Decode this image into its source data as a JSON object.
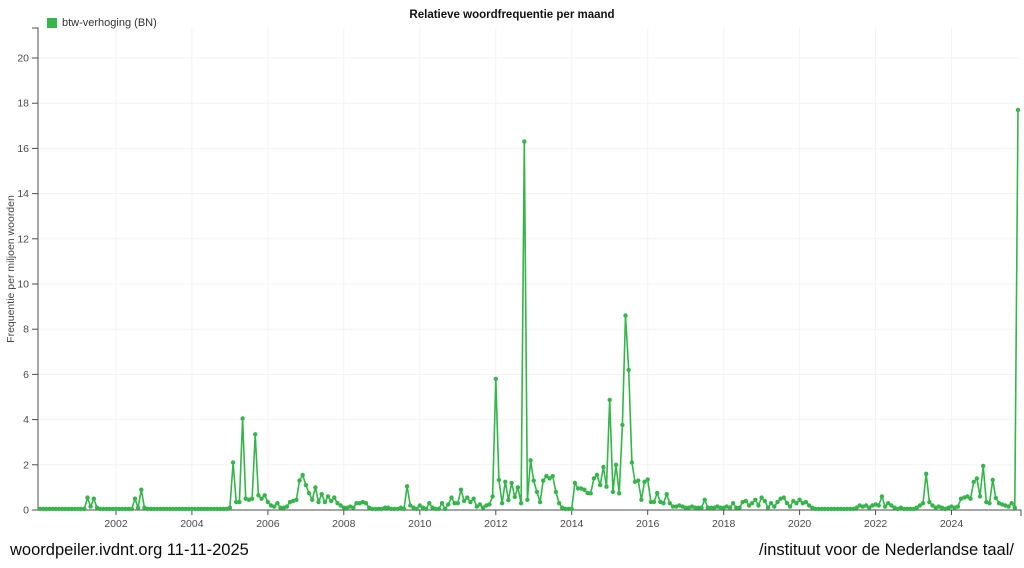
{
  "page": {
    "title": "Relatieve woordfrequentie per maand",
    "footer_left": "woordpeiler.ivdnt.org 11-11-2025",
    "footer_right": "/instituut voor de Nederlandse taal/"
  },
  "legend": {
    "label": "btw-verhoging (BN)",
    "color": "#35b54a"
  },
  "chart_data": {
    "type": "line",
    "title": "Relatieve woordfrequentie per maand",
    "series_name": "btw-verhoging (BN)",
    "xlabel": "",
    "ylabel": "Frequentie per miljoen woorden",
    "x_start": "2000-01",
    "x_end": "2025-10",
    "x_ticks": [
      2002,
      2004,
      2006,
      2008,
      2010,
      2012,
      2014,
      2016,
      2018,
      2020,
      2022,
      2024
    ],
    "y_ticks": [
      0,
      2,
      4,
      6,
      8,
      10,
      12,
      14,
      16,
      18,
      20
    ],
    "ylim": [
      0,
      21.3
    ],
    "grid": true,
    "legend_position": "top-left",
    "color": "#35b54a",
    "grid_color": "#f3f3f3",
    "axis_color": "#4d4d4d",
    "tick_label_color": "#4a4a4a",
    "point_radius": 2.2,
    "monthly_series": [
      {
        "year": 2000,
        "values": [
          0.05,
          0.05,
          0.05,
          0.05,
          0.05,
          0.05,
          0.05,
          0.05,
          0.05,
          0.05,
          0.05,
          0.05
        ]
      },
      {
        "year": 2001,
        "values": [
          0.05,
          0.05,
          0.05,
          0.55,
          0.15,
          0.5,
          0.1,
          0.05,
          0.05,
          0.05,
          0.05,
          0.05
        ]
      },
      {
        "year": 2002,
        "values": [
          0.05,
          0.05,
          0.05,
          0.05,
          0.05,
          0.05,
          0.5,
          0.1,
          0.9,
          0.1,
          0.05,
          0.05
        ]
      },
      {
        "year": 2003,
        "values": [
          0.05,
          0.05,
          0.05,
          0.05,
          0.05,
          0.05,
          0.05,
          0.05,
          0.05,
          0.05,
          0.05,
          0.05
        ]
      },
      {
        "year": 2004,
        "values": [
          0.05,
          0.05,
          0.05,
          0.05,
          0.05,
          0.05,
          0.05,
          0.05,
          0.05,
          0.05,
          0.05,
          0.05
        ]
      },
      {
        "year": 2005,
        "values": [
          0.1,
          2.1,
          0.35,
          0.35,
          4.05,
          0.5,
          0.45,
          0.5,
          3.35,
          0.65,
          0.5,
          0.65
        ]
      },
      {
        "year": 2006,
        "values": [
          0.35,
          0.2,
          0.15,
          0.3,
          0.1,
          0.1,
          0.15,
          0.35,
          0.4,
          0.45,
          1.3,
          1.55
        ]
      },
      {
        "year": 2007,
        "values": [
          1.1,
          0.75,
          0.45,
          1.0,
          0.35,
          0.7,
          0.35,
          0.6,
          0.4,
          0.55,
          0.3,
          0.2
        ]
      },
      {
        "year": 2008,
        "values": [
          0.1,
          0.1,
          0.15,
          0.1,
          0.3,
          0.3,
          0.35,
          0.3,
          0.1,
          0.05,
          0.05,
          0.05
        ]
      },
      {
        "year": 2009,
        "values": [
          0.05,
          0.1,
          0.1,
          0.05,
          0.05,
          0.05,
          0.1,
          0.05,
          1.05,
          0.2,
          0.1,
          0.05
        ]
      },
      {
        "year": 2010,
        "values": [
          0.2,
          0.1,
          0.05,
          0.3,
          0.1,
          0.05,
          0.05,
          0.3,
          0.05,
          0.25,
          0.55,
          0.3
        ]
      },
      {
        "year": 2011,
        "values": [
          0.3,
          0.9,
          0.4,
          0.55,
          0.35,
          0.5,
          0.15,
          0.25,
          0.1,
          0.2,
          0.25,
          0.6
        ]
      },
      {
        "year": 2012,
        "values": [
          5.8,
          1.33,
          0.3,
          1.25,
          0.44,
          1.2,
          0.58,
          1.0,
          0.3,
          16.3,
          0.45,
          2.2
        ]
      },
      {
        "year": 2013,
        "values": [
          1.3,
          0.8,
          0.35,
          1.3,
          1.5,
          1.4,
          1.5,
          0.8,
          0.3,
          0.1,
          0.05,
          0.05
        ]
      },
      {
        "year": 2014,
        "values": [
          0.05,
          1.2,
          0.95,
          0.95,
          0.9,
          0.75,
          0.74,
          1.4,
          1.55,
          1.1,
          1.9,
          1.03
        ]
      },
      {
        "year": 2015,
        "values": [
          4.87,
          0.8,
          2.0,
          0.74,
          3.76,
          8.6,
          6.2,
          2.1,
          1.25,
          1.3,
          0.45,
          1.25
        ]
      },
      {
        "year": 2016,
        "values": [
          1.35,
          0.36,
          0.36,
          0.75,
          0.36,
          0.3,
          0.7,
          0.3,
          0.15,
          0.15,
          0.2,
          0.15
        ]
      },
      {
        "year": 2017,
        "values": [
          0.1,
          0.1,
          0.15,
          0.1,
          0.1,
          0.1,
          0.45,
          0.1,
          0.1,
          0.1,
          0.15,
          0.1
        ]
      },
      {
        "year": 2018,
        "values": [
          0.1,
          0.15,
          0.1,
          0.3,
          0.1,
          0.1,
          0.35,
          0.4,
          0.2,
          0.3,
          0.45,
          0.2
        ]
      },
      {
        "year": 2019,
        "values": [
          0.55,
          0.4,
          0.1,
          0.3,
          0.15,
          0.35,
          0.5,
          0.55,
          0.3,
          0.15,
          0.4,
          0.3
        ]
      },
      {
        "year": 2020,
        "values": [
          0.45,
          0.3,
          0.35,
          0.2,
          0.1,
          0.05,
          0.05,
          0.05,
          0.05,
          0.05,
          0.05,
          0.05
        ]
      },
      {
        "year": 2021,
        "values": [
          0.05,
          0.05,
          0.05,
          0.05,
          0.05,
          0.05,
          0.1,
          0.2,
          0.15,
          0.2,
          0.1,
          0.2
        ]
      },
      {
        "year": 2022,
        "values": [
          0.25,
          0.2,
          0.6,
          0.15,
          0.3,
          0.2,
          0.1,
          0.05,
          0.1,
          0.05,
          0.05,
          0.05
        ]
      },
      {
        "year": 2023,
        "values": [
          0.05,
          0.1,
          0.2,
          0.3,
          1.6,
          0.35,
          0.2,
          0.1,
          0.15,
          0.1,
          0.05,
          0.1
        ]
      },
      {
        "year": 2024,
        "values": [
          0.15,
          0.1,
          0.15,
          0.5,
          0.55,
          0.6,
          0.5,
          1.24,
          1.4,
          0.6,
          1.95,
          0.35
        ]
      },
      {
        "year": 2025,
        "values": [
          0.3,
          1.33,
          0.53,
          0.3,
          0.25,
          0.2,
          0.15,
          0.3,
          0.1,
          17.7
        ]
      }
    ]
  }
}
